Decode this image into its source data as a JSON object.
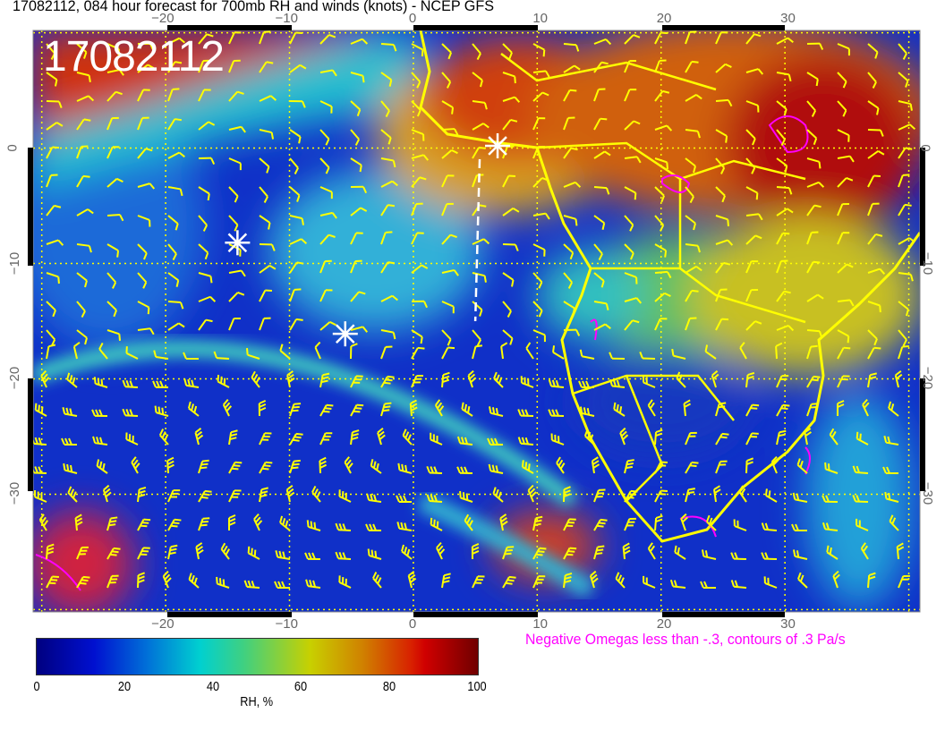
{
  "title": "17082112, 084 hour forecast for 700mb RH and winds (knots) - NCEP GFS",
  "date_stamp": "17082112",
  "map": {
    "extent": {
      "lon": [
        -30.7,
        40.9
      ],
      "lat": [
        -40.2,
        10.2
      ]
    },
    "lon_ticks": [
      "−20",
      "−10",
      "0",
      "10",
      "20",
      "30"
    ],
    "lon_values": [
      -20,
      -10,
      0,
      10,
      20,
      30
    ],
    "lat_ticks": [
      "0",
      "−10",
      "−20",
      "−30"
    ],
    "lat_values": [
      0,
      -10,
      -20,
      -30
    ],
    "gridlines": "dotted yellow every 10 degrees",
    "coastline_color": "#ffff00",
    "wind_barb_color": "#ffff00",
    "omega_contour_color": "#ff00ff",
    "markers": [
      {
        "symbol": "asterisk",
        "lon": 6.8,
        "lat": 0.2,
        "color": "#ffffff"
      },
      {
        "symbol": "asterisk",
        "lon": -14.2,
        "lat": -8.2,
        "color": "#ffffff"
      },
      {
        "symbol": "asterisk",
        "lon": -5.5,
        "lat": -16.1,
        "color": "#ffffff"
      }
    ]
  },
  "omega_note": "Negative Omegas less than -.3, contours of .3 Pa/s",
  "colorbar": {
    "label": "RH, %",
    "ticks": [
      "0",
      "20",
      "40",
      "60",
      "80",
      "100"
    ],
    "range": [
      0,
      100
    ],
    "colors": [
      "#000080",
      "#0010d0",
      "#00d0d0",
      "#c8d000",
      "#d00000",
      "#700000"
    ]
  }
}
